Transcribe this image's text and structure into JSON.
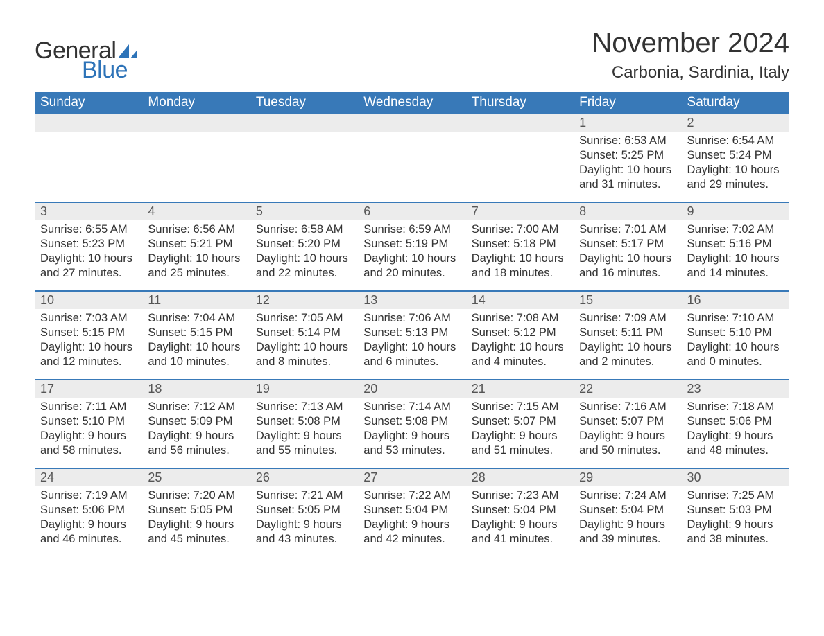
{
  "brand": {
    "word1": "General",
    "word2": "Blue",
    "accent_color": "#2d73b8"
  },
  "title": "November 2024",
  "location": "Carbonia, Sardinia, Italy",
  "colors": {
    "header_bg": "#3879b8",
    "header_fg": "#ffffff",
    "daynum_bg": "#ececec",
    "text": "#333333",
    "week_divider": "#3879b8"
  },
  "fonts": {
    "title_size_pt": 30,
    "location_size_pt": 18,
    "weekday_size_pt": 14,
    "body_size_pt": 12
  },
  "weekdays": [
    "Sunday",
    "Monday",
    "Tuesday",
    "Wednesday",
    "Thursday",
    "Friday",
    "Saturday"
  ],
  "weeks": [
    [
      null,
      null,
      null,
      null,
      null,
      {
        "n": "1",
        "sunrise": "6:53 AM",
        "sunset": "5:25 PM",
        "dl1": "Daylight: 10 hours",
        "dl2": "and 31 minutes."
      },
      {
        "n": "2",
        "sunrise": "6:54 AM",
        "sunset": "5:24 PM",
        "dl1": "Daylight: 10 hours",
        "dl2": "and 29 minutes."
      }
    ],
    [
      {
        "n": "3",
        "sunrise": "6:55 AM",
        "sunset": "5:23 PM",
        "dl1": "Daylight: 10 hours",
        "dl2": "and 27 minutes."
      },
      {
        "n": "4",
        "sunrise": "6:56 AM",
        "sunset": "5:21 PM",
        "dl1": "Daylight: 10 hours",
        "dl2": "and 25 minutes."
      },
      {
        "n": "5",
        "sunrise": "6:58 AM",
        "sunset": "5:20 PM",
        "dl1": "Daylight: 10 hours",
        "dl2": "and 22 minutes."
      },
      {
        "n": "6",
        "sunrise": "6:59 AM",
        "sunset": "5:19 PM",
        "dl1": "Daylight: 10 hours",
        "dl2": "and 20 minutes."
      },
      {
        "n": "7",
        "sunrise": "7:00 AM",
        "sunset": "5:18 PM",
        "dl1": "Daylight: 10 hours",
        "dl2": "and 18 minutes."
      },
      {
        "n": "8",
        "sunrise": "7:01 AM",
        "sunset": "5:17 PM",
        "dl1": "Daylight: 10 hours",
        "dl2": "and 16 minutes."
      },
      {
        "n": "9",
        "sunrise": "7:02 AM",
        "sunset": "5:16 PM",
        "dl1": "Daylight: 10 hours",
        "dl2": "and 14 minutes."
      }
    ],
    [
      {
        "n": "10",
        "sunrise": "7:03 AM",
        "sunset": "5:15 PM",
        "dl1": "Daylight: 10 hours",
        "dl2": "and 12 minutes."
      },
      {
        "n": "11",
        "sunrise": "7:04 AM",
        "sunset": "5:15 PM",
        "dl1": "Daylight: 10 hours",
        "dl2": "and 10 minutes."
      },
      {
        "n": "12",
        "sunrise": "7:05 AM",
        "sunset": "5:14 PM",
        "dl1": "Daylight: 10 hours",
        "dl2": "and 8 minutes."
      },
      {
        "n": "13",
        "sunrise": "7:06 AM",
        "sunset": "5:13 PM",
        "dl1": "Daylight: 10 hours",
        "dl2": "and 6 minutes."
      },
      {
        "n": "14",
        "sunrise": "7:08 AM",
        "sunset": "5:12 PM",
        "dl1": "Daylight: 10 hours",
        "dl2": "and 4 minutes."
      },
      {
        "n": "15",
        "sunrise": "7:09 AM",
        "sunset": "5:11 PM",
        "dl1": "Daylight: 10 hours",
        "dl2": "and 2 minutes."
      },
      {
        "n": "16",
        "sunrise": "7:10 AM",
        "sunset": "5:10 PM",
        "dl1": "Daylight: 10 hours",
        "dl2": "and 0 minutes."
      }
    ],
    [
      {
        "n": "17",
        "sunrise": "7:11 AM",
        "sunset": "5:10 PM",
        "dl1": "Daylight: 9 hours",
        "dl2": "and 58 minutes."
      },
      {
        "n": "18",
        "sunrise": "7:12 AM",
        "sunset": "5:09 PM",
        "dl1": "Daylight: 9 hours",
        "dl2": "and 56 minutes."
      },
      {
        "n": "19",
        "sunrise": "7:13 AM",
        "sunset": "5:08 PM",
        "dl1": "Daylight: 9 hours",
        "dl2": "and 55 minutes."
      },
      {
        "n": "20",
        "sunrise": "7:14 AM",
        "sunset": "5:08 PM",
        "dl1": "Daylight: 9 hours",
        "dl2": "and 53 minutes."
      },
      {
        "n": "21",
        "sunrise": "7:15 AM",
        "sunset": "5:07 PM",
        "dl1": "Daylight: 9 hours",
        "dl2": "and 51 minutes."
      },
      {
        "n": "22",
        "sunrise": "7:16 AM",
        "sunset": "5:07 PM",
        "dl1": "Daylight: 9 hours",
        "dl2": "and 50 minutes."
      },
      {
        "n": "23",
        "sunrise": "7:18 AM",
        "sunset": "5:06 PM",
        "dl1": "Daylight: 9 hours",
        "dl2": "and 48 minutes."
      }
    ],
    [
      {
        "n": "24",
        "sunrise": "7:19 AM",
        "sunset": "5:06 PM",
        "dl1": "Daylight: 9 hours",
        "dl2": "and 46 minutes."
      },
      {
        "n": "25",
        "sunrise": "7:20 AM",
        "sunset": "5:05 PM",
        "dl1": "Daylight: 9 hours",
        "dl2": "and 45 minutes."
      },
      {
        "n": "26",
        "sunrise": "7:21 AM",
        "sunset": "5:05 PM",
        "dl1": "Daylight: 9 hours",
        "dl2": "and 43 minutes."
      },
      {
        "n": "27",
        "sunrise": "7:22 AM",
        "sunset": "5:04 PM",
        "dl1": "Daylight: 9 hours",
        "dl2": "and 42 minutes."
      },
      {
        "n": "28",
        "sunrise": "7:23 AM",
        "sunset": "5:04 PM",
        "dl1": "Daylight: 9 hours",
        "dl2": "and 41 minutes."
      },
      {
        "n": "29",
        "sunrise": "7:24 AM",
        "sunset": "5:04 PM",
        "dl1": "Daylight: 9 hours",
        "dl2": "and 39 minutes."
      },
      {
        "n": "30",
        "sunrise": "7:25 AM",
        "sunset": "5:03 PM",
        "dl1": "Daylight: 9 hours",
        "dl2": "and 38 minutes."
      }
    ]
  ],
  "labels": {
    "sunrise_prefix": "Sunrise: ",
    "sunset_prefix": "Sunset: "
  }
}
